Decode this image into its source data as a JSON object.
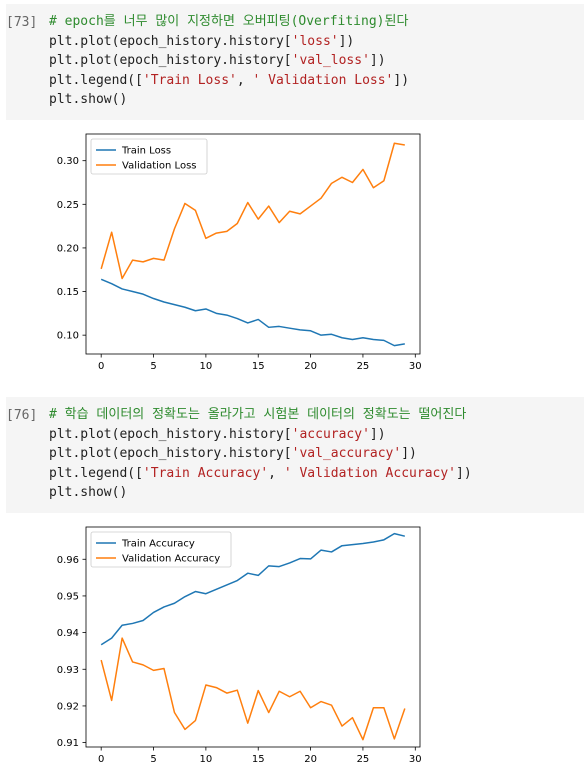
{
  "cells": [
    {
      "prompt": "[73]",
      "lines": [
        [
          {
            "t": "# epoch를 너무 많이 지정하면 오버피팅(Overfiting)된다",
            "c": "cm"
          }
        ],
        [
          {
            "t": "plt.plot(epoch_history.history[",
            "c": ""
          },
          {
            "t": "'loss'",
            "c": "st"
          },
          {
            "t": "])",
            "c": ""
          }
        ],
        [
          {
            "t": "plt.plot(epoch_history.history[",
            "c": ""
          },
          {
            "t": "'val_loss'",
            "c": "st"
          },
          {
            "t": "])",
            "c": ""
          }
        ],
        [
          {
            "t": "plt.legend([",
            "c": ""
          },
          {
            "t": "'Train Loss'",
            "c": "st"
          },
          {
            "t": ", ",
            "c": ""
          },
          {
            "t": "' Validation Loss'",
            "c": "st"
          },
          {
            "t": "])",
            "c": ""
          }
        ],
        [
          {
            "t": "plt.show()",
            "c": ""
          }
        ]
      ]
    },
    {
      "prompt": "[76]",
      "lines": [
        [
          {
            "t": "# 학습 데이터의 정확도는 올라가고 시험본 데이터의 정확도는 떨어진다",
            "c": "cm"
          }
        ],
        [
          {
            "t": "plt.plot(epoch_history.history[",
            "c": ""
          },
          {
            "t": "'accuracy'",
            "c": "st"
          },
          {
            "t": "])",
            "c": ""
          }
        ],
        [
          {
            "t": "plt.plot(epoch_history.history[",
            "c": ""
          },
          {
            "t": "'val_accuracy'",
            "c": "st"
          },
          {
            "t": "])",
            "c": ""
          }
        ],
        [
          {
            "t": "plt.legend([",
            "c": ""
          },
          {
            "t": "'Train Accuracy'",
            "c": "st"
          },
          {
            "t": ", ",
            "c": ""
          },
          {
            "t": "' Validation Accuracy'",
            "c": "st"
          },
          {
            "t": "])",
            "c": ""
          }
        ],
        [
          {
            "t": "plt.show()",
            "c": ""
          }
        ]
      ]
    }
  ],
  "colors": {
    "train": "#1f77b4",
    "val": "#ff7f0e"
  },
  "chart_data": [
    {
      "type": "line",
      "title": "",
      "xlabel": "",
      "ylabel": "",
      "xlim": [
        -1.45,
        30.45
      ],
      "ylim": [
        0.0784,
        0.3306
      ],
      "xticks": [
        0,
        5,
        10,
        15,
        20,
        25,
        30
      ],
      "yticks": [
        0.1,
        0.15,
        0.2,
        0.25,
        0.3
      ],
      "ytick_labels": [
        "0.10",
        "0.15",
        "0.20",
        "0.25",
        "0.30"
      ],
      "legend_position": "upper-left",
      "x": [
        0,
        1,
        2,
        3,
        4,
        5,
        6,
        7,
        8,
        9,
        10,
        11,
        12,
        13,
        14,
        15,
        16,
        17,
        18,
        19,
        20,
        21,
        22,
        23,
        24,
        25,
        26,
        27,
        28,
        29
      ],
      "series": [
        {
          "name": "Train Loss",
          "color": "train",
          "values": [
            0.164,
            0.159,
            0.153,
            0.15,
            0.147,
            0.142,
            0.138,
            0.135,
            0.132,
            0.128,
            0.13,
            0.125,
            0.123,
            0.119,
            0.114,
            0.118,
            0.109,
            0.11,
            0.108,
            0.106,
            0.105,
            0.1,
            0.101,
            0.097,
            0.095,
            0.097,
            0.095,
            0.094,
            0.088,
            0.09
          ]
        },
        {
          "name": " Validation Loss",
          "color": "val",
          "values": [
            0.176,
            0.218,
            0.165,
            0.186,
            0.184,
            0.188,
            0.186,
            0.222,
            0.251,
            0.243,
            0.211,
            0.217,
            0.219,
            0.228,
            0.252,
            0.233,
            0.248,
            0.229,
            0.242,
            0.239,
            0.248,
            0.257,
            0.274,
            0.281,
            0.275,
            0.29,
            0.269,
            0.277,
            0.32,
            0.318
          ]
        }
      ]
    },
    {
      "type": "line",
      "title": "",
      "xlabel": "",
      "ylabel": "",
      "xlim": [
        -1.45,
        30.45
      ],
      "ylim": [
        0.9088,
        0.9688
      ],
      "xticks": [
        0,
        5,
        10,
        15,
        20,
        25,
        30
      ],
      "yticks": [
        0.91,
        0.92,
        0.93,
        0.94,
        0.95,
        0.96
      ],
      "ytick_labels": [
        "0.91",
        "0.92",
        "0.93",
        "0.94",
        "0.95",
        "0.96"
      ],
      "legend_position": "upper-left",
      "x": [
        0,
        1,
        2,
        3,
        4,
        5,
        6,
        7,
        8,
        9,
        10,
        11,
        12,
        13,
        14,
        15,
        16,
        17,
        18,
        19,
        20,
        21,
        22,
        23,
        24,
        25,
        26,
        27,
        28,
        29
      ],
      "series": [
        {
          "name": "Train Accuracy",
          "color": "train",
          "values": [
            0.9367,
            0.9385,
            0.942,
            0.9425,
            0.9433,
            0.9455,
            0.947,
            0.948,
            0.9498,
            0.9512,
            0.9506,
            0.9518,
            0.953,
            0.9542,
            0.9562,
            0.9556,
            0.9582,
            0.958,
            0.959,
            0.9602,
            0.9601,
            0.9625,
            0.962,
            0.9637,
            0.964,
            0.9643,
            0.9647,
            0.9653,
            0.967,
            0.9663
          ]
        },
        {
          "name": " Validation Accuracy",
          "color": "val",
          "values": [
            0.9325,
            0.9215,
            0.9385,
            0.932,
            0.9312,
            0.9297,
            0.9302,
            0.9182,
            0.9136,
            0.916,
            0.9257,
            0.925,
            0.9235,
            0.9243,
            0.9153,
            0.9242,
            0.9182,
            0.924,
            0.9225,
            0.924,
            0.9195,
            0.9212,
            0.9202,
            0.9145,
            0.9168,
            0.9108,
            0.9195,
            0.9195,
            0.911,
            0.9193
          ]
        }
      ]
    }
  ]
}
